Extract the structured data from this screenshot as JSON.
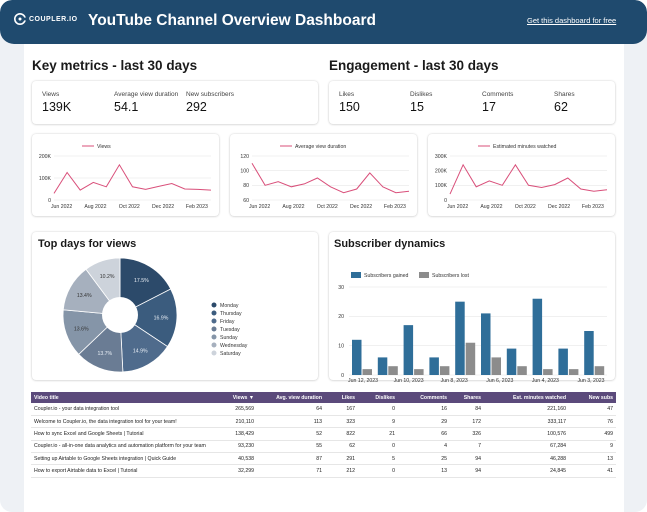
{
  "header": {
    "logo_text": "COUPLER.IO",
    "title": "YouTube Channel Overview Dashboard",
    "link_text": "Get this dashboard for free"
  },
  "key_metrics": {
    "title": "Key metrics - last 30 days",
    "items": [
      {
        "label": "Views",
        "value": "139K"
      },
      {
        "label": "Average view duration",
        "value": "54.1"
      },
      {
        "label": "New subscribers",
        "value": "292"
      }
    ]
  },
  "engagement": {
    "title": "Engagement - last 30 days",
    "items": [
      {
        "label": "Likes",
        "value": "150"
      },
      {
        "label": "Dislikes",
        "value": "15"
      },
      {
        "label": "Comments",
        "value": "17"
      },
      {
        "label": "Shares",
        "value": "62"
      }
    ]
  },
  "colors": {
    "header_bg": "#1f4a6e",
    "line": "#d94f7a",
    "table_header": "#5b4a7b",
    "bar_gained": "#2f6e99",
    "bar_lost": "#8c8c8c"
  },
  "top_days": {
    "title": "Top days for views"
  },
  "subscriber_dynamics": {
    "title": "Subscriber dynamics"
  },
  "chart_data": [
    {
      "type": "line",
      "series": [
        {
          "name": "Views",
          "values": [
            30,
            125,
            45,
            80,
            60,
            160,
            60,
            48,
            62,
            75,
            50,
            48,
            45
          ]
        }
      ],
      "x_ticks": [
        "Jun 2022",
        "Aug 2022",
        "Oct 2022",
        "Dec 2022",
        "Feb 2023"
      ],
      "y_ticks": [
        "0",
        "100K",
        "200K"
      ],
      "ylim": [
        0,
        200
      ]
    },
    {
      "type": "line",
      "series": [
        {
          "name": "Average view duration",
          "values": [
            110,
            80,
            85,
            78,
            82,
            90,
            78,
            70,
            75,
            97,
            78,
            70,
            72
          ]
        }
      ],
      "x_ticks": [
        "Jun 2022",
        "Aug 2022",
        "Oct 2022",
        "Dec 2022",
        "Feb 2023"
      ],
      "y_ticks": [
        "60",
        "80",
        "100",
        "120"
      ],
      "ylim": [
        60,
        120
      ]
    },
    {
      "type": "line",
      "series": [
        {
          "name": "Estimated minutes watched",
          "values": [
            40,
            240,
            90,
            130,
            100,
            240,
            100,
            85,
            105,
            150,
            75,
            60,
            70
          ]
        }
      ],
      "x_ticks": [
        "Jun 2022",
        "Aug 2022",
        "Oct 2022",
        "Dec 2022",
        "Feb 2023"
      ],
      "y_ticks": [
        "0",
        "100K",
        "200K",
        "300K"
      ],
      "ylim": [
        0,
        300
      ]
    },
    {
      "type": "pie",
      "categories": [
        "Monday",
        "Thursday",
        "Friday",
        "Tuesday",
        "Sunday",
        "Wednesday",
        "Saturday"
      ],
      "values": [
        17.5,
        16.9,
        14.9,
        13.7,
        13.6,
        13.4,
        10.2
      ],
      "labels": [
        "17.5%",
        "16.9%",
        "14.9%",
        "13.7%",
        "13.6%",
        "13.4%",
        "10.2%"
      ],
      "colors": [
        "#2c4a6a",
        "#3b5c7e",
        "#4f6b8c",
        "#6a7c94",
        "#8595a8",
        "#a6b0be",
        "#cdd3db"
      ]
    },
    {
      "type": "bar",
      "series": [
        {
          "name": "Subscribers gained",
          "values": [
            12,
            6,
            17,
            6,
            25,
            21,
            9,
            26,
            9,
            15
          ]
        },
        {
          "name": "Subscribers lost",
          "values": [
            2,
            3,
            2,
            3,
            11,
            6,
            3,
            2,
            2,
            3
          ]
        }
      ],
      "x_ticks": [
        "Jun 12, 2023",
        "Jun 10, 2023",
        "Jun 8, 2023",
        "Jun 6, 2023",
        "Jun 4, 2023",
        "Jun 3, 2023"
      ],
      "y_ticks": [
        "0",
        "10",
        "20",
        "30"
      ],
      "ylim": [
        0,
        30
      ]
    }
  ],
  "table": {
    "columns": [
      "Video title",
      "Views ▼",
      "Avg. view duration",
      "Likes",
      "Dislikes",
      "Comments",
      "Shares",
      "Est. minutes watched",
      "New subs"
    ],
    "rows": [
      [
        "Coupler.io - your data integration tool",
        "265,569",
        "64",
        "167",
        "0",
        "16",
        "84",
        "221,160",
        "47"
      ],
      [
        "Welcome to Coupler.io, the data integration tool for your team!",
        "210,110",
        "113",
        "323",
        "9",
        "29",
        "172",
        "333,117",
        "76"
      ],
      [
        "How to sync Excel and Google Sheets | Tutorial",
        "138,429",
        "52",
        "822",
        "21",
        "66",
        "326",
        "100,576",
        "499"
      ],
      [
        "Coupler.io - all-in-one data analytics and automation platform for your team",
        "93,230",
        "55",
        "62",
        "0",
        "4",
        "7",
        "67,284",
        "9"
      ],
      [
        "Setting up Airtable to Google Sheets integration | Quick Guide",
        "40,538",
        "87",
        "291",
        "5",
        "25",
        "94",
        "46,288",
        "13"
      ],
      [
        "How to export Airtable data to Excel | Tutorial",
        "32,299",
        "71",
        "212",
        "0",
        "13",
        "94",
        "24,845",
        "41"
      ]
    ]
  }
}
